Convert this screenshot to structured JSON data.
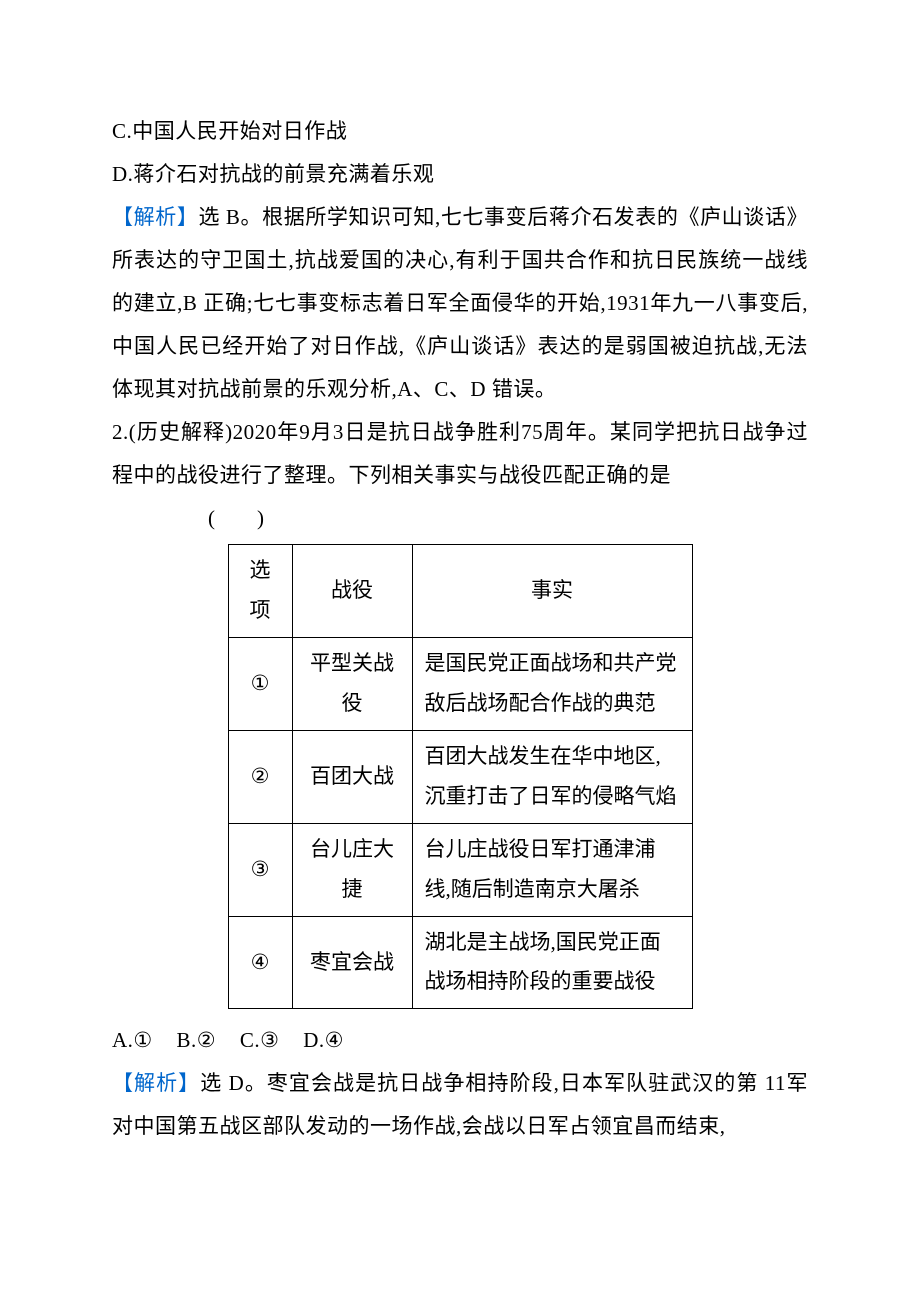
{
  "optionC": "C.中国人民开始对日作战",
  "optionD": "D.蒋介石对抗战的前景充满着乐观",
  "analysis1Label": "【解析】",
  "analysis1Body": "选 B。根据所学知识可知,七七事变后蒋介石发表的《庐山谈话》所表达的守卫国土,抗战爱国的决心,有利于国共合作和抗日民族统一战线的建立,B 正确;七七事变标志着日军全面侵华的开始,1931年九一八事变后,中国人民已经开始了对日作战,《庐山谈话》表达的是弱国被迫抗战,无法体现其对抗战前景的乐观分析,A、C、D 错误。",
  "q2Stem": "2.(历史解释)2020年9月3日是抗日战争胜利75周年。某同学把抗日战争过程中的战役进行了整理。下列相关事实与战役匹配正确的是",
  "paren": "(　　)",
  "table": {
    "headers": {
      "opt": "选项",
      "battle": "战役",
      "fact": "事实"
    },
    "rows": [
      {
        "opt": "①",
        "battle": "平型关战役",
        "fact": "是国民党正面战场和共产党敌后战场配合作战的典范"
      },
      {
        "opt": "②",
        "battle": "百团大战",
        "fact": "百团大战发生在华中地区,沉重打击了日军的侵略气焰"
      },
      {
        "opt": "③",
        "battle": "台儿庄大捷",
        "fact": "台儿庄战役日军打通津浦线,随后制造南京大屠杀"
      },
      {
        "opt": "④",
        "battle": "枣宜会战",
        "fact": "湖北是主战场,国民党正面战场相持阶段的重要战役"
      }
    ]
  },
  "choices": {
    "a": "A.①",
    "b": "B.②",
    "c": "C.③",
    "d": "D.④"
  },
  "analysis2Label": "【解析】",
  "analysis2Body": "选 D。枣宜会战是抗日战争相持阶段,日本军队驻武汉的第 11军对中国第五战区部队发动的一场作战,会战以日军占领宜昌而结束,",
  "colors": {
    "analysisLabel": "#0066cc",
    "text": "#000000",
    "border": "#000000",
    "bg": "#ffffff"
  },
  "fontSizePx": 21,
  "lineHeight": 2.05
}
